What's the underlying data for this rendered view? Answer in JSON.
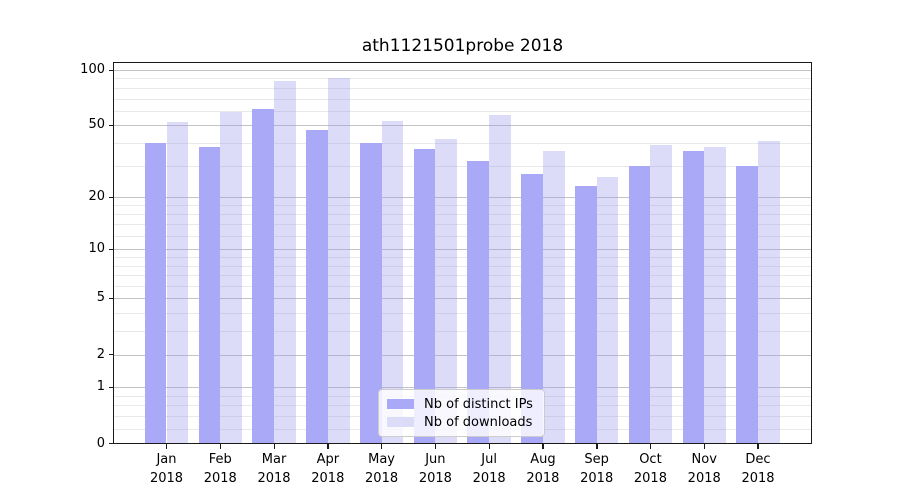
{
  "chart_data": {
    "type": "bar",
    "title": "ath1121501probe 2018",
    "categories": [
      "Jan",
      "Feb",
      "Mar",
      "Apr",
      "May",
      "Jun",
      "Jul",
      "Aug",
      "Sep",
      "Oct",
      "Nov",
      "Dec"
    ],
    "year": "2018",
    "series": [
      {
        "name": "Nb of distinct IPs",
        "color": "#a9a9f7",
        "values": [
          40,
          38,
          61,
          47,
          40,
          37,
          32,
          27,
          23,
          30,
          36,
          30
        ]
      },
      {
        "name": "Nb of downloads",
        "color": "#dcdcf8",
        "color_translucent": "rgba(155,155,235,0.35)",
        "values": [
          52,
          59,
          87,
          91,
          53,
          42,
          57,
          36,
          26,
          39,
          38,
          41
        ]
      }
    ],
    "y_scale": "log10(1+v)",
    "y_major_ticks": [
      100,
      50,
      20,
      10,
      5,
      2,
      1,
      0
    ],
    "y_minor_values": [
      0.2,
      0.4,
      0.6,
      0.8,
      3,
      4,
      6,
      7,
      8,
      9,
      12,
      14,
      16,
      18,
      30,
      40,
      60,
      70,
      80,
      90
    ],
    "ylim": [
      0,
      100
    ],
    "grid": "on",
    "legend_position": "lower center"
  }
}
